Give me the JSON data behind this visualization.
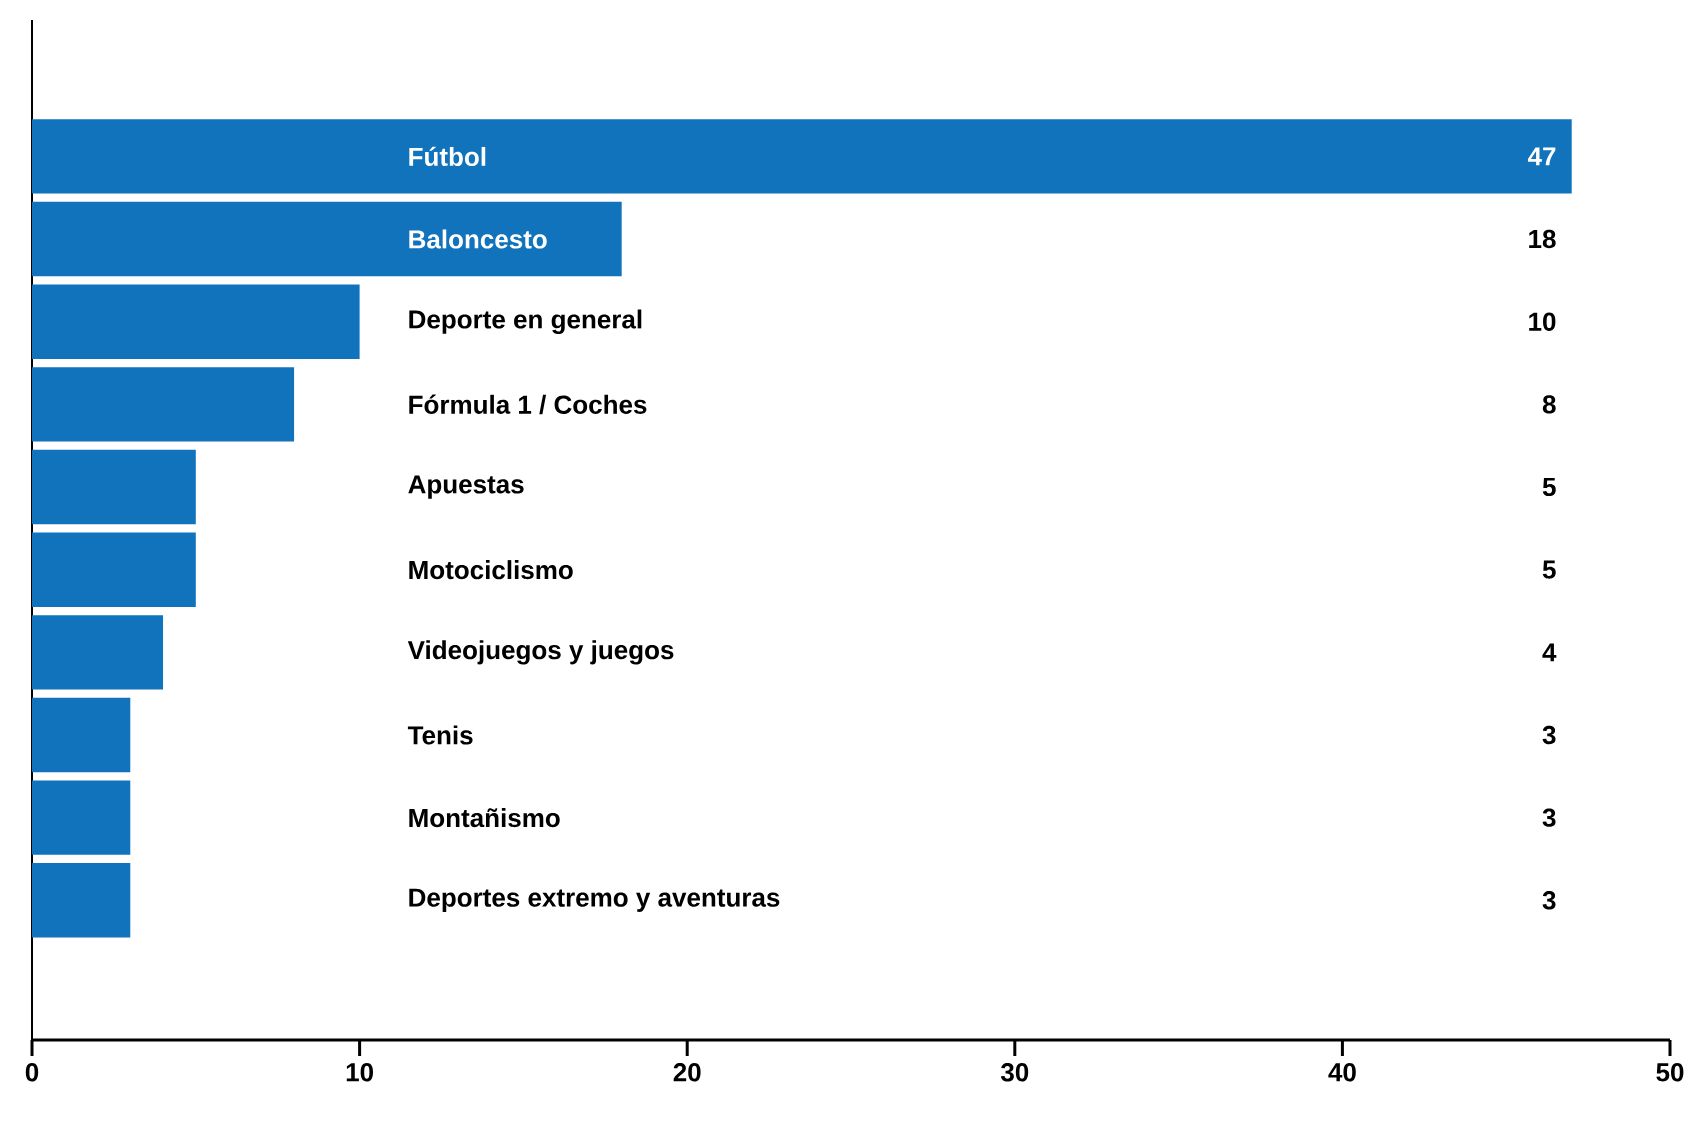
{
  "chart_data": {
    "type": "bar",
    "orientation": "horizontal",
    "categories": [
      "Fútbol",
      "Baloncesto",
      "Deporte en general",
      "Fórmula 1 / Coches",
      "Apuestas",
      "Motociclismo",
      "Videojuegos y juegos",
      "Tenis",
      "Montañismo",
      "Deportes extremo y aventuras"
    ],
    "values": [
      47,
      18,
      10,
      8,
      5,
      5,
      4,
      3,
      3,
      3
    ],
    "color": "#1273bd",
    "xlim": [
      0,
      50
    ],
    "xticks": [
      0,
      10,
      20,
      30,
      40,
      50
    ],
    "data_labels": true
  }
}
